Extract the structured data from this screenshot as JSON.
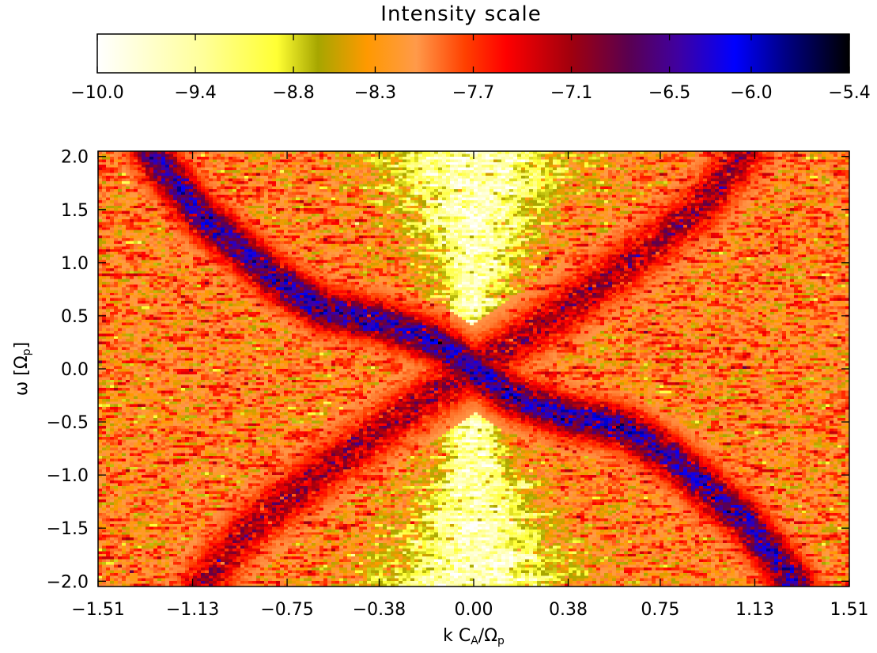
{
  "colorbar": {
    "title": "Intensity scale",
    "min": -10.0,
    "max": -5.4,
    "tick_labels": [
      "−10.0",
      "−9.4",
      "−8.8",
      "−8.3",
      "−7.7",
      "−7.1",
      "−6.5",
      "−6.0",
      "−5.4"
    ],
    "tick_values": [
      -10.0,
      -9.4,
      -8.8,
      -8.3,
      -7.7,
      -7.1,
      -6.5,
      -6.0,
      -5.4
    ],
    "colormap": [
      {
        "value": -10.0,
        "color": "#ffffff"
      },
      {
        "value": -9.35,
        "color": "#ffff99"
      },
      {
        "value": -8.9,
        "color": "#ffff33"
      },
      {
        "value": -8.65,
        "color": "#a6a600"
      },
      {
        "value": -8.35,
        "color": "#ff9900"
      },
      {
        "value": -8.05,
        "color": "#ff9a4a"
      },
      {
        "value": -7.75,
        "color": "#ff4000"
      },
      {
        "value": -7.5,
        "color": "#ff0000"
      },
      {
        "value": -7.1,
        "color": "#a0000e"
      },
      {
        "value": -6.75,
        "color": "#5a0050"
      },
      {
        "value": -6.45,
        "color": "#4000a0"
      },
      {
        "value": -6.1,
        "color": "#0000ff"
      },
      {
        "value": -5.8,
        "color": "#000088"
      },
      {
        "value": -5.4,
        "color": "#000000"
      }
    ]
  },
  "chart_data": {
    "type": "heatmap",
    "title": "",
    "xlabel_main": "k C",
    "xlabel_sub": "A",
    "xlabel_mid": "/Ω",
    "xlabel_sub2": "p",
    "ylabel_main": "ω [Ω",
    "ylabel_sub": "p",
    "ylabel_end": "]",
    "xlim": [
      -1.51,
      1.51
    ],
    "ylim": [
      -2.05,
      2.05
    ],
    "x_tick_values": [
      -1.51,
      -1.13,
      -0.75,
      -0.38,
      0.0,
      0.38,
      0.75,
      1.13,
      1.51
    ],
    "x_tick_labels": [
      "−1.51",
      "−1.13",
      "−0.75",
      "−0.38",
      "0.00",
      "0.38",
      "0.75",
      "1.13",
      "1.51"
    ],
    "y_tick_values": [
      2.0,
      1.5,
      1.0,
      0.5,
      0.0,
      -0.5,
      -1.0,
      -1.5,
      -2.0
    ],
    "y_tick_labels": [
      "2.0",
      "1.5",
      "1.0",
      "0.5",
      "0.0",
      "−0.5",
      "−1.0",
      "−1.5",
      "−2.0"
    ],
    "background_level": -8.05,
    "noise_amplitude": 0.45,
    "grid": {
      "nx": 190,
      "ny": 160
    },
    "features": [
      {
        "name": "central-valley",
        "kind": "valley",
        "x_center": 0.0,
        "half_width_at_w0": 0.05,
        "half_width_at_w2": 0.42,
        "depth": 1.5
      },
      {
        "name": "ridge-upper-left",
        "kind": "ridge",
        "points": [
          [
            0.0,
            0.0
          ],
          [
            -0.15,
            0.25
          ],
          [
            -0.38,
            0.45
          ],
          [
            -0.6,
            0.55
          ],
          [
            -0.8,
            0.85
          ],
          [
            -1.1,
            1.45
          ],
          [
            -1.3,
            2.05
          ]
        ],
        "peak": -6.2,
        "width": 0.045
      },
      {
        "name": "ridge-lower-right",
        "kind": "ridge",
        "points": [
          [
            0.0,
            0.0
          ],
          [
            0.15,
            -0.25
          ],
          [
            0.38,
            -0.45
          ],
          [
            0.6,
            -0.55
          ],
          [
            0.8,
            -0.85
          ],
          [
            1.1,
            -1.45
          ],
          [
            1.3,
            -2.05
          ]
        ],
        "peak": -6.2,
        "width": 0.045
      },
      {
        "name": "ridge-upper-right",
        "kind": "ridge",
        "points": [
          [
            0.0,
            0.0
          ],
          [
            0.1,
            0.15
          ],
          [
            0.3,
            0.45
          ],
          [
            0.6,
            0.95
          ],
          [
            0.9,
            1.5
          ],
          [
            1.1,
            2.05
          ]
        ],
        "peak": -7.0,
        "width": 0.05
      },
      {
        "name": "ridge-lower-left",
        "kind": "ridge",
        "points": [
          [
            0.0,
            0.0
          ],
          [
            -0.1,
            -0.15
          ],
          [
            -0.3,
            -0.45
          ],
          [
            -0.6,
            -0.95
          ],
          [
            -0.9,
            -1.5
          ],
          [
            -1.1,
            -2.05
          ]
        ],
        "peak": -7.0,
        "width": 0.05
      }
    ]
  }
}
